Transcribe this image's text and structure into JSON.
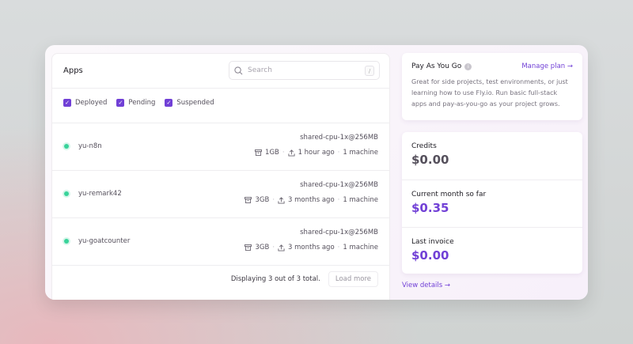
{
  "apps": {
    "title": "Apps",
    "search_placeholder": "Search",
    "search_shortcut": "/",
    "filters": [
      "Deployed",
      "Pending",
      "Suspended"
    ],
    "items": [
      {
        "name": "yu-n8n",
        "status": "deployed",
        "spec": "shared-cpu-1x@256MB",
        "volume": "1GB",
        "deployed": "1 hour ago",
        "machines": "1 machine"
      },
      {
        "name": "yu-remark42",
        "status": "deployed",
        "spec": "shared-cpu-1x@256MB",
        "volume": "3GB",
        "deployed": "3 months ago",
        "machines": "1 machine"
      },
      {
        "name": "yu-goatcounter",
        "status": "deployed",
        "spec": "shared-cpu-1x@256MB",
        "volume": "3GB",
        "deployed": "3 months ago",
        "machines": "1 machine"
      }
    ],
    "footer_text": "Displaying 3 out of 3 total.",
    "load_more": "Load more"
  },
  "plan": {
    "title": "Pay As You Go",
    "manage": "Manage plan →",
    "description": "Great for side projects, test environments, or just learning how to use Fly.io. Run basic full-stack apps and pay-as-you-go as your project grows."
  },
  "billing": [
    {
      "label": "Credits",
      "value": "$0.00",
      "color": "#55505c"
    },
    {
      "label": "Current month so far",
      "value": "$0.35",
      "color": "#7140d6"
    },
    {
      "label": "Last invoice",
      "value": "$0.00",
      "color": "#7140d6"
    }
  ],
  "view_details": "View details →",
  "colors": {
    "accent": "#7140d6",
    "status_ok": "#38d39a"
  }
}
